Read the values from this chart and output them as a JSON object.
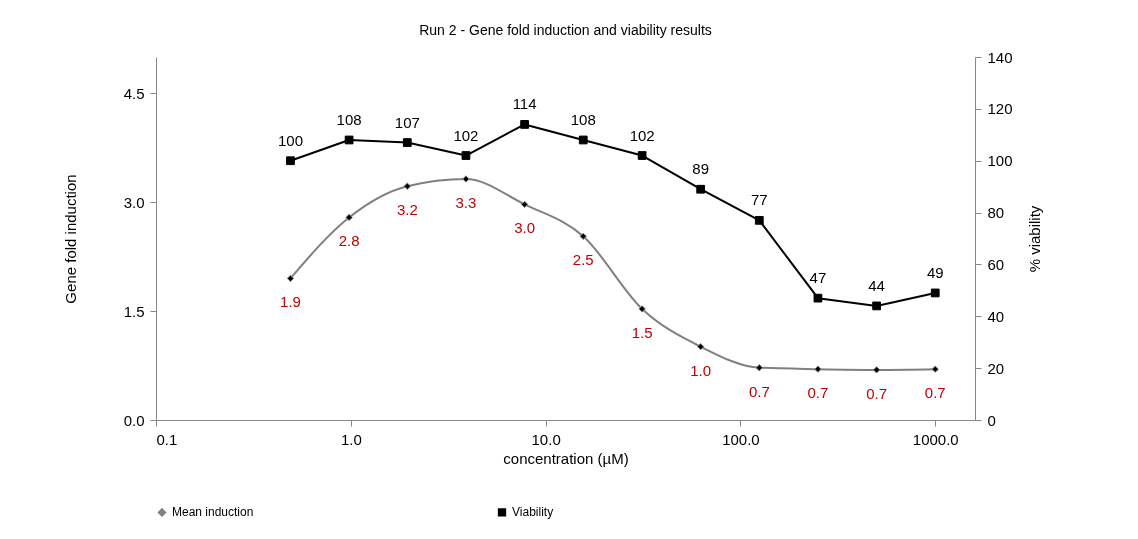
{
  "chart_data": {
    "type": "line",
    "title": "Run 2 - Gene fold induction and viability results",
    "xlabel": "concentration (µM)",
    "ylabel": "Gene  fold induction",
    "y2label": "% viability",
    "log": "x",
    "grid": false,
    "legend": "bottom",
    "x": [
      0.49,
      0.98,
      1.95,
      3.9,
      7.8,
      15.6,
      31.3,
      62.5,
      125,
      250,
      500,
      1000
    ],
    "xlim": [
      0.1,
      1600
    ],
    "xticks": [
      0.1,
      {
        "value": 1,
        "label": "1.0"
      },
      {
        "value": 10,
        "label": "10.0"
      },
      {
        "value": 100,
        "label": "100.0"
      },
      {
        "value": 1000,
        "label": "1000.0"
      }
    ],
    "ylim": [
      0,
      5
    ],
    "yticks": [
      {
        "value": 0,
        "label": "0.0"
      },
      1.5,
      {
        "value": 3,
        "label": "3.0"
      },
      4.5
    ],
    "y2lim": [
      0,
      140
    ],
    "y2ticks": [
      0,
      20,
      40,
      60,
      80,
      100,
      120,
      140
    ],
    "series": [
      {
        "name": "Mean induction",
        "color": "#808080",
        "marker": "diamond",
        "values": [
          1.95,
          2.79,
          3.22,
          3.32,
          2.97,
          2.53,
          1.53,
          1.01,
          0.72,
          0.7,
          0.69,
          0.7
        ],
        "value_labels": [
          "1.9",
          "2.8",
          "3.2",
          "3.3",
          "3.0",
          "2.5",
          "1.5",
          "1.0",
          "0.7",
          "0.7",
          "0.7",
          "0.7"
        ]
      },
      {
        "name": "Viability",
        "color": "#000000",
        "marker": "square",
        "axis": "y2",
        "values": [
          100,
          108,
          107,
          102,
          114,
          108,
          102,
          89,
          77,
          47,
          44,
          49
        ],
        "value_labels": [
          "100",
          "108",
          "107",
          "102",
          "114",
          "108",
          "102",
          "89",
          "77",
          "47",
          "44",
          "49"
        ]
      }
    ]
  }
}
